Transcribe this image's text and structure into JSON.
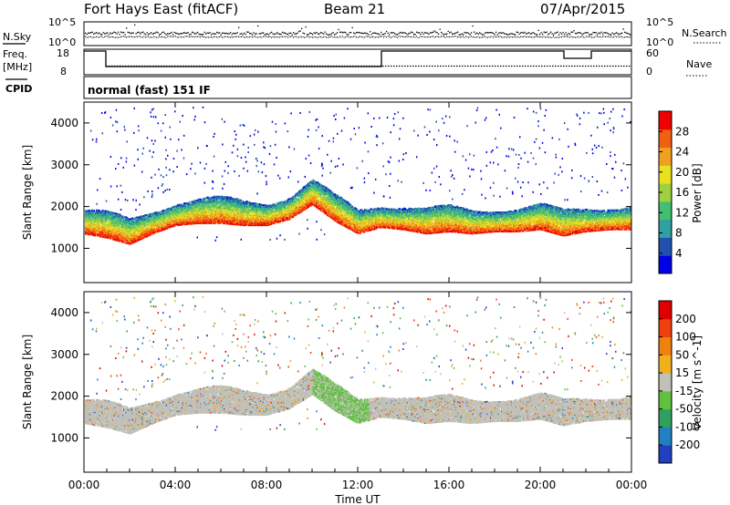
{
  "header": {
    "station": "Fort Hays East (fitACF)",
    "beam": "Beam 21",
    "date": "07/Apr/2015"
  },
  "top_panels": {
    "nsky_label": "N.Sky",
    "nsky_ticks": [
      "10^5",
      "10^0"
    ],
    "nsearch_label": "N.Search",
    "nsearch_ticks": [
      "10^5",
      "10^0"
    ],
    "freq_label_1": "Freq.",
    "freq_label_2": "[MHz]",
    "freq_ticks": [
      "18",
      "8"
    ],
    "nave_label": "Nave",
    "nave_ticks": [
      "60",
      "0"
    ],
    "cpid_label": "CPID",
    "cpid_text": "normal (fast) 151 IF"
  },
  "chart_data": [
    {
      "type": "heatmap",
      "title": "",
      "xlabel": "",
      "ylabel": "Slant Range [km]",
      "xlim": [
        "00:00",
        "00:00"
      ],
      "ylim": [
        180,
        4500
      ],
      "yticks": [
        "1000",
        "2000",
        "3000",
        "4000"
      ],
      "colorbar": {
        "label": "Power [dB]",
        "ticks": [
          "28",
          "24",
          "20",
          "16",
          "12",
          "8",
          "4"
        ],
        "colors": [
          "#0000e6",
          "#2050b0",
          "#30a0a0",
          "#40c070",
          "#a0d040",
          "#e8e020",
          "#f0a020",
          "#f06010",
          "#f00000"
        ]
      },
      "band_center_km": [
        [
          0,
          1600
        ],
        [
          1,
          1500
        ],
        [
          2,
          1350
        ],
        [
          3,
          1600
        ],
        [
          4,
          1800
        ],
        [
          5,
          1850
        ],
        [
          6,
          1850
        ],
        [
          7,
          1800
        ],
        [
          8,
          1800
        ],
        [
          9,
          1950
        ],
        [
          10,
          2300
        ],
        [
          11,
          1900
        ],
        [
          12,
          1600
        ],
        [
          13,
          1750
        ],
        [
          14,
          1700
        ],
        [
          15,
          1600
        ],
        [
          16,
          1650
        ],
        [
          17,
          1600
        ],
        [
          18,
          1650
        ],
        [
          19,
          1650
        ],
        [
          20,
          1700
        ],
        [
          21,
          1550
        ],
        [
          22,
          1650
        ],
        [
          23,
          1700
        ],
        [
          24,
          1700
        ]
      ]
    },
    {
      "type": "heatmap",
      "title": "",
      "xlabel": "Time UT",
      "ylabel": "Slant Range [km]",
      "xticks": [
        "00:00",
        "04:00",
        "08:00",
        "12:00",
        "16:00",
        "20:00",
        "00:00"
      ],
      "ylim": [
        180,
        4500
      ],
      "yticks": [
        "1000",
        "2000",
        "3000",
        "4000"
      ],
      "colorbar": {
        "label": "Velocity [m s^-1]",
        "ticks": [
          "200",
          "100",
          "50",
          "15",
          "-15",
          "-50",
          "-100",
          "-200"
        ],
        "colors": [
          "#2040c0",
          "#2080c0",
          "#30a060",
          "#60c040",
          "#c0c0b8",
          "#f0b020",
          "#f08010",
          "#f04010",
          "#e00000"
        ]
      }
    }
  ]
}
